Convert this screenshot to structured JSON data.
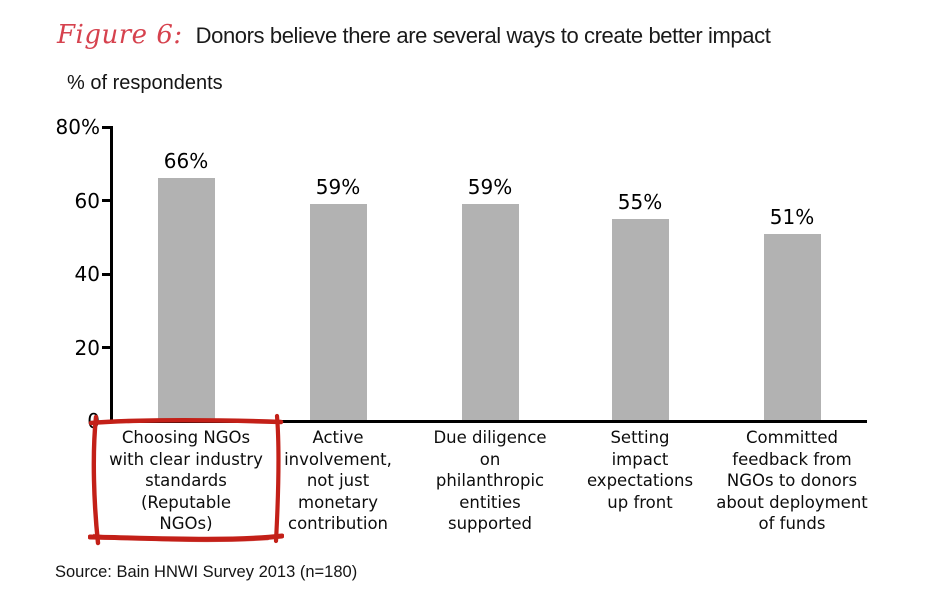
{
  "header": {
    "figure_label": "Figure 6:",
    "title": "Donors believe there are several ways to create better impact"
  },
  "y_axis_title": "% of respondents",
  "source": "Source: Bain HNWI Survey 2013 (n=180)",
  "colors": {
    "bar_gray": "#b2b2b2",
    "figure_label_red": "#d6424e",
    "annotation_red": "#c32018",
    "axis_black": "#000000",
    "text_dark": "#1a1a1a"
  },
  "chart_data": {
    "type": "bar",
    "title": "Donors believe there are several ways to create better impact",
    "ylabel": "% of respondents",
    "xlabel": "",
    "ylim": [
      0,
      80
    ],
    "grid": false,
    "legend": "none",
    "yticks": [
      {
        "value": 80,
        "label": "80%"
      },
      {
        "value": 60,
        "label": "60"
      },
      {
        "value": 40,
        "label": "40"
      },
      {
        "value": 20,
        "label": "20"
      },
      {
        "value": 0,
        "label": "0"
      }
    ],
    "categories": [
      "Choosing NGOs with clear industry standards (Reputable NGOs)",
      "Active involvement, not just monetary contribution",
      "Due diligence on philanthropic entities supported",
      "Setting impact expectations up front",
      "Committed feedback from NGOs to donors about deployment of funds"
    ],
    "category_lines": [
      [
        "Choosing NGOs",
        "with clear industry",
        "standards",
        "(Reputable",
        "NGOs)"
      ],
      [
        "Active",
        "involvement,",
        "not just",
        "monetary",
        "contribution"
      ],
      [
        "Due diligence",
        "on",
        "philanthropic",
        "entities",
        "supported"
      ],
      [
        "Setting",
        "impact",
        "expectations",
        "up front"
      ],
      [
        "Committed",
        "feedback from",
        "NGOs to donors",
        "about deployment",
        "of funds"
      ]
    ],
    "values": [
      66,
      59,
      59,
      55,
      51
    ],
    "value_labels": [
      "66%",
      "59%",
      "59%",
      "55%",
      "51%"
    ],
    "highlighted_category_index": 0,
    "highlight_style": "hand-drawn red box"
  }
}
